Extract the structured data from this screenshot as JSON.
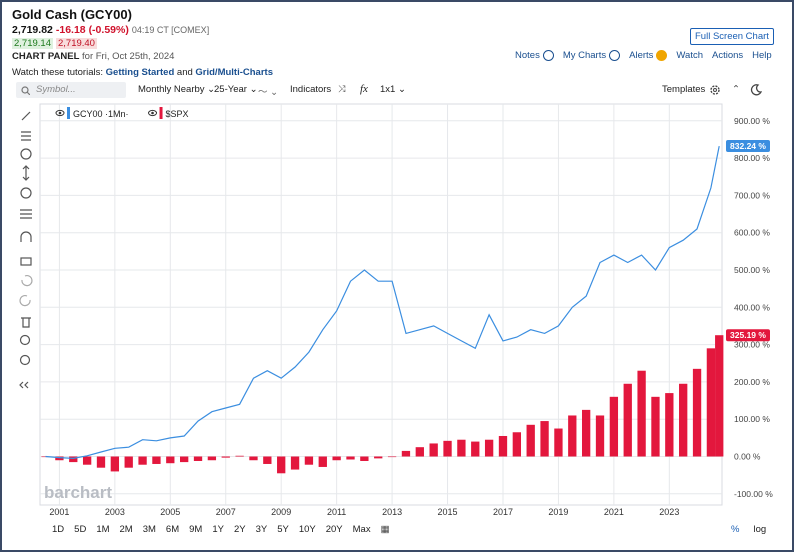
{
  "header": {
    "title": "Gold Cash (GCY00)",
    "last": "2,719.82",
    "change": "-16.18 (-0.59%)",
    "time": "04:19 CT [COMEX]",
    "bid": "2,719.14",
    "ask": "2,719.40",
    "panel_label": "CHART PANEL",
    "panel_date": "for Fri, Oct 25th, 2024",
    "fullscreen": "Full Screen Chart"
  },
  "menu": [
    "Notes",
    "My Charts",
    "Alerts",
    "Watch",
    "Actions",
    "Help"
  ],
  "tutorials": {
    "prefix": "Watch these tutorials:",
    "link1": "Getting Started",
    "joiner": "and",
    "link2": "Grid/Multi-Charts"
  },
  "toolbar": {
    "symbol": "Symbol...",
    "aggregation": "Monthly Nearby",
    "period": "25-Year",
    "indicators": "Indicators",
    "fx": "fx",
    "layout": "1x1",
    "templates": "Templates"
  },
  "periods": [
    "1D",
    "5D",
    "1M",
    "2M",
    "3M",
    "6M",
    "9M",
    "1Y",
    "2Y",
    "3Y",
    "5Y",
    "10Y",
    "20Y",
    "Max"
  ],
  "scale_options": [
    "%",
    "log"
  ],
  "watermark": "barchart",
  "chart_data": {
    "type": "combo",
    "x": [
      2000.5,
      2001.0,
      2001.5,
      2002.0,
      2002.5,
      2003.0,
      2003.5,
      2004.0,
      2004.5,
      2005.0,
      2005.5,
      2006.0,
      2006.5,
      2007.0,
      2007.5,
      2008.0,
      2008.5,
      2009.0,
      2009.5,
      2010.0,
      2010.5,
      2011.0,
      2011.5,
      2012.0,
      2012.5,
      2013.0,
      2013.5,
      2014.0,
      2014.5,
      2015.0,
      2015.5,
      2016.0,
      2016.5,
      2017.0,
      2017.5,
      2018.0,
      2018.5,
      2019.0,
      2019.5,
      2020.0,
      2020.5,
      2021.0,
      2021.5,
      2022.0,
      2022.5,
      2023.0,
      2023.5,
      2024.0,
      2024.5,
      2024.8
    ],
    "series": [
      {
        "name": "GCY00 ·1Mn·",
        "type": "line",
        "color": "#3b8ee0",
        "values": [
          0,
          -3,
          -5,
          2,
          12,
          22,
          25,
          45,
          42,
          50,
          55,
          95,
          120,
          130,
          140,
          210,
          230,
          210,
          240,
          280,
          340,
          390,
          470,
          500,
          470,
          470,
          330,
          340,
          350,
          330,
          310,
          290,
          380,
          310,
          320,
          340,
          330,
          350,
          400,
          430,
          520,
          540,
          520,
          540,
          500,
          560,
          580,
          610,
          720,
          832.24
        ],
        "value_labels": [
          null,
          null,
          null,
          null,
          null,
          null,
          null,
          null,
          null,
          null,
          null,
          null,
          null,
          null,
          null,
          null,
          null,
          null,
          null,
          null,
          null,
          null,
          null,
          null,
          null,
          null,
          null,
          null,
          null,
          null,
          null,
          null,
          null,
          null,
          null,
          null,
          null,
          null,
          null,
          null,
          null,
          null,
          null,
          null,
          null,
          null,
          null,
          null,
          null,
          "832.24 %"
        ]
      },
      {
        "name": "$SPX",
        "type": "bar",
        "color": "#e3173d",
        "values": [
          0,
          -10,
          -15,
          -22,
          -30,
          -40,
          -30,
          -22,
          -20,
          -18,
          -15,
          -12,
          -10,
          -3,
          2,
          -10,
          -20,
          -45,
          -35,
          -22,
          -28,
          -10,
          -8,
          -12,
          -5,
          0,
          15,
          25,
          35,
          42,
          45,
          40,
          45,
          55,
          65,
          85,
          95,
          75,
          110,
          125,
          110,
          160,
          195,
          230,
          160,
          170,
          195,
          235,
          290,
          325.19
        ],
        "value_labels": [
          null,
          null,
          null,
          null,
          null,
          null,
          null,
          null,
          null,
          null,
          null,
          null,
          null,
          null,
          null,
          null,
          null,
          null,
          null,
          null,
          null,
          null,
          null,
          null,
          null,
          null,
          null,
          null,
          null,
          null,
          null,
          null,
          null,
          null,
          null,
          null,
          null,
          null,
          null,
          null,
          null,
          null,
          null,
          null,
          null,
          null,
          null,
          null,
          null,
          "325.19 %"
        ]
      }
    ],
    "xlim": [
      2000.3,
      2024.9
    ],
    "xticks": [
      2001,
      2003,
      2005,
      2007,
      2009,
      2011,
      2013,
      2015,
      2017,
      2019,
      2021,
      2023
    ],
    "ylim": [
      -130,
      945
    ],
    "yticks": [
      {
        "value": -100,
        "label": "-100.00 %"
      },
      {
        "value": 0,
        "label": "0.00 %"
      },
      {
        "value": 100,
        "label": "100.00 %"
      },
      {
        "value": 200,
        "label": "200.00 %"
      },
      {
        "value": 300,
        "label": "300.00 %"
      },
      {
        "value": 400,
        "label": "400.00 %"
      },
      {
        "value": 500,
        "label": "500.00 %"
      },
      {
        "value": 600,
        "label": "600.00 %"
      },
      {
        "value": 700,
        "label": "700.00 %"
      },
      {
        "value": 800,
        "label": "800.00 %"
      },
      {
        "value": 900,
        "label": "900.00 %"
      }
    ],
    "grid": true
  }
}
